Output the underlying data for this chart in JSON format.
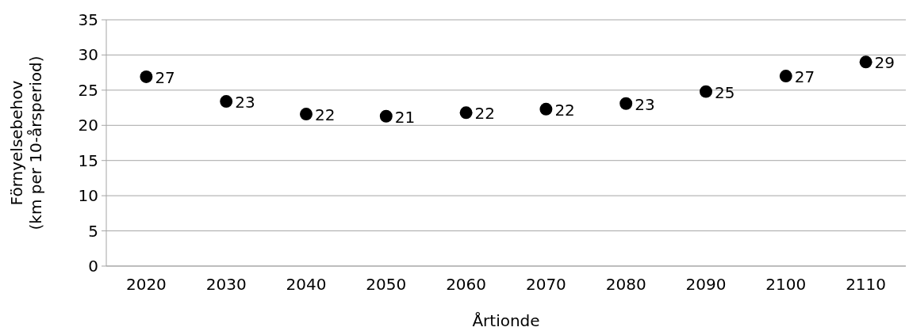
{
  "chart_data": {
    "type": "scatter",
    "xlabel": "Årtionde",
    "ylabel": "Förnyelsebehov\n(km per 10-årsperiod)",
    "categories": [
      "2020",
      "2030",
      "2040",
      "2050",
      "2060",
      "2070",
      "2080",
      "2090",
      "2100",
      "2110"
    ],
    "values": [
      26.9,
      23.4,
      21.6,
      21.3,
      21.8,
      22.3,
      23.1,
      24.8,
      27.0,
      29.0
    ],
    "value_labels": [
      "27",
      "23",
      "22",
      "21",
      "22",
      "22",
      "23",
      "25",
      "27",
      "29"
    ],
    "color": "#000000",
    "marker": "circle",
    "ylim": [
      0,
      35
    ],
    "yticks": [
      0,
      5,
      10,
      15,
      20,
      25,
      30,
      35
    ],
    "grid": "y"
  }
}
